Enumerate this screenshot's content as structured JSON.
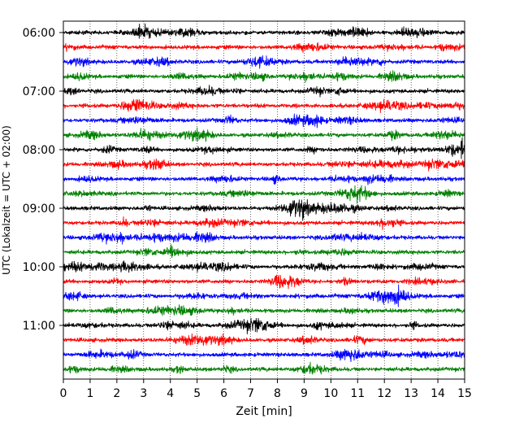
{
  "chart_data": {
    "type": "line",
    "chart_kind": "helicorder seismogram",
    "title": "",
    "xlabel": "Zeit  [min]",
    "ylabel": "UTC (Lokalzeit = UTC + 02:00)",
    "xlim": [
      0,
      15
    ],
    "x_ticks": [
      "0",
      "1",
      "2",
      "3",
      "4",
      "5",
      "6",
      "7",
      "8",
      "9",
      "10",
      "11",
      "12",
      "13",
      "14",
      "15"
    ],
    "y_tick_labels": [
      "06:00",
      "07:00",
      "08:00",
      "09:00",
      "10:00",
      "11:00"
    ],
    "grid": "vertical dotted at each minute",
    "trace_interval_minutes": 15,
    "trace_colors": [
      "#000000",
      "#ff0000",
      "#0000ff",
      "#008000"
    ],
    "traces": [
      {
        "start": "06:00",
        "color": "#000000"
      },
      {
        "start": "06:15",
        "color": "#ff0000"
      },
      {
        "start": "06:30",
        "color": "#0000ff"
      },
      {
        "start": "06:45",
        "color": "#008000"
      },
      {
        "start": "07:00",
        "color": "#000000"
      },
      {
        "start": "07:15",
        "color": "#ff0000"
      },
      {
        "start": "07:30",
        "color": "#0000ff"
      },
      {
        "start": "07:45",
        "color": "#008000"
      },
      {
        "start": "08:00",
        "color": "#000000"
      },
      {
        "start": "08:15",
        "color": "#ff0000"
      },
      {
        "start": "08:30",
        "color": "#0000ff"
      },
      {
        "start": "08:45",
        "color": "#008000"
      },
      {
        "start": "09:00",
        "color": "#000000"
      },
      {
        "start": "09:15",
        "color": "#ff0000"
      },
      {
        "start": "09:30",
        "color": "#0000ff"
      },
      {
        "start": "09:45",
        "color": "#008000"
      },
      {
        "start": "10:00",
        "color": "#000000"
      },
      {
        "start": "10:15",
        "color": "#ff0000"
      },
      {
        "start": "10:30",
        "color": "#0000ff"
      },
      {
        "start": "10:45",
        "color": "#008000"
      },
      {
        "start": "11:00",
        "color": "#000000"
      },
      {
        "start": "11:15",
        "color": "#ff0000"
      },
      {
        "start": "11:30",
        "color": "#0000ff"
      },
      {
        "start": "11:45",
        "color": "#008000"
      }
    ],
    "events": [
      {
        "trace_start": "09:00",
        "minute_start": 7.9,
        "minute_end": 9.6,
        "description": "large burst"
      },
      {
        "trace_start": "08:00",
        "minute_start": 14.8,
        "minute_end": 15.0,
        "description": "spike at end"
      }
    ]
  }
}
